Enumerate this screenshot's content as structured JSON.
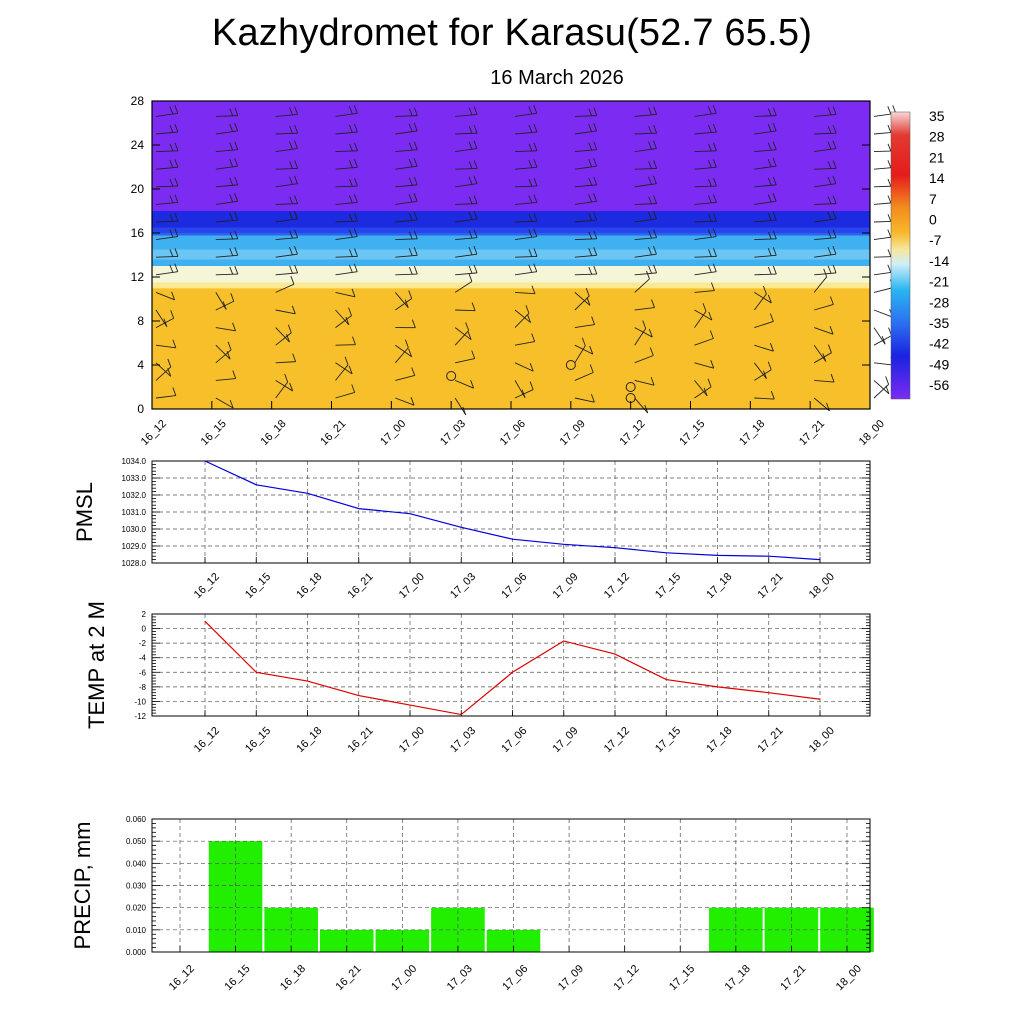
{
  "title": "Kazhydromet for Karasu(52.7 65.5)",
  "subtitle": "16 March 2026",
  "time_labels": [
    "16_12",
    "16_15",
    "16_18",
    "16_21",
    "17_00",
    "17_03",
    "17_06",
    "17_09",
    "17_12",
    "17_15",
    "17_18",
    "17_21",
    "18_00"
  ],
  "chart_data": [
    {
      "type": "heatmap",
      "name": "vertical cross-section",
      "x": [
        "16_12",
        "16_15",
        "16_18",
        "16_21",
        "17_00",
        "17_03",
        "17_06",
        "17_09",
        "17_12",
        "17_15",
        "17_18",
        "17_21",
        "18_00"
      ],
      "ylim": [
        0,
        28
      ],
      "yticks": [
        "0",
        "4",
        "8",
        "12",
        "16",
        "20",
        "24",
        "28"
      ],
      "colorbar_labels": [
        "35",
        "28",
        "21",
        "14",
        "7",
        "0",
        "-7",
        "-14",
        "-21",
        "-28",
        "-35",
        "-42",
        "-49",
        "-56"
      ],
      "layers": [
        {
          "from": 0,
          "to": 11,
          "value": "0 to 7",
          "color": "#f7c02a"
        },
        {
          "from": 11,
          "to": 13,
          "value": "-7 to -14",
          "color": "#f5f5d8"
        },
        {
          "from": 13,
          "to": 16,
          "value": "-21 to -35",
          "color": "#3fb0f0"
        },
        {
          "from": 16,
          "to": 18,
          "value": "-49 to -56",
          "color": "#1c2ae0"
        },
        {
          "from": 18,
          "to": 28,
          "value": "< -56",
          "color": "#7c2cf2"
        }
      ],
      "circle_markers": [
        {
          "x": "17_03",
          "y": 3
        },
        {
          "x": "17_09",
          "y": 4
        },
        {
          "x": "17_12",
          "y": 2
        },
        {
          "x": "17_12",
          "y": 1
        }
      ]
    },
    {
      "type": "line",
      "ylabel": "PMSL",
      "x": [
        "16_12",
        "16_15",
        "16_18",
        "16_21",
        "17_00",
        "17_03",
        "17_06",
        "17_09",
        "17_12",
        "17_15",
        "17_18",
        "17_21",
        "18_00"
      ],
      "values": [
        1034.0,
        1032.6,
        1032.1,
        1031.2,
        1030.9,
        1030.1,
        1029.4,
        1029.1,
        1028.9,
        1028.6,
        1028.45,
        1028.4,
        1028.2
      ],
      "ylim": [
        1028.0,
        1034.0
      ],
      "yticks": [
        "1028.0",
        "1029.0",
        "1030.0",
        "1031.0",
        "1032.0",
        "1033.0",
        "1034.0"
      ],
      "color": "#0000dd"
    },
    {
      "type": "line",
      "ylabel": "TEMP at 2 M",
      "x": [
        "16_12",
        "16_15",
        "16_18",
        "16_21",
        "17_00",
        "17_03",
        "17_06",
        "17_09",
        "17_12",
        "17_15",
        "17_18",
        "17_21",
        "18_00"
      ],
      "values": [
        1.0,
        -6.0,
        -7.2,
        -9.2,
        -10.5,
        -11.8,
        -6.0,
        -1.7,
        -3.5,
        -7.0,
        -8.0,
        -8.8,
        -9.7
      ],
      "ylim": [
        -12,
        2
      ],
      "yticks": [
        "-12",
        "-10",
        "-8",
        "-6",
        "-4",
        "-2",
        "0",
        "2"
      ],
      "color": "#dd0000"
    },
    {
      "type": "bar",
      "ylabel": "PRECIP, mm",
      "categories": [
        "16_12",
        "16_15",
        "16_18",
        "16_21",
        "17_00",
        "17_03",
        "17_06",
        "17_09",
        "17_12",
        "17_15",
        "17_18",
        "17_21",
        "18_00"
      ],
      "values": [
        0,
        0.05,
        0.02,
        0.01,
        0.01,
        0.02,
        0.01,
        0,
        0,
        0,
        0.02,
        0.02,
        0.02
      ],
      "ylim": [
        0,
        0.06
      ],
      "yticks": [
        "0.000",
        "0.010",
        "0.020",
        "0.030",
        "0.040",
        "0.050",
        "0.060"
      ],
      "color": "#22ee00"
    }
  ]
}
